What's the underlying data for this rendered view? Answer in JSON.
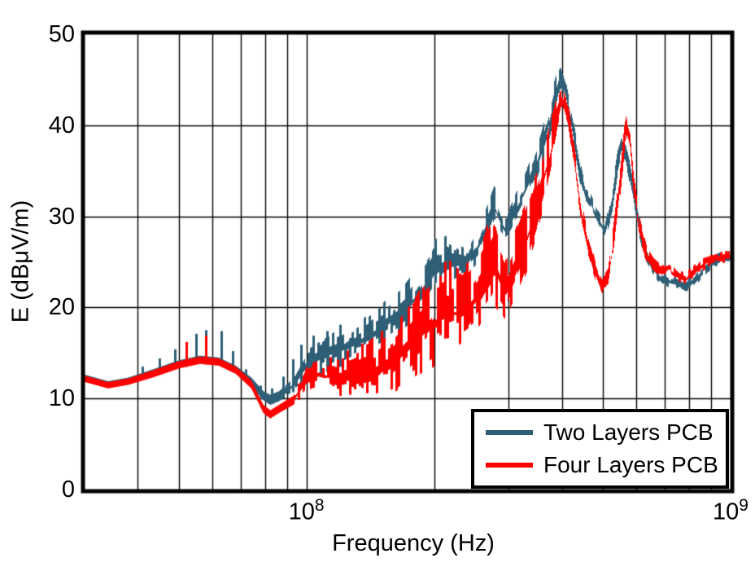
{
  "chart_data": {
    "type": "line",
    "title": "",
    "xlabel": "Frequency (Hz)",
    "ylabel": "E (dBμV/m)",
    "x_scale": "log",
    "xlim": [
      30000000,
      1000000000
    ],
    "ylim": [
      0,
      50
    ],
    "yticks": [
      0,
      10,
      20,
      30,
      40,
      50
    ],
    "xticks": [
      {
        "base": "10",
        "exp": "8",
        "value": 100000000
      },
      {
        "base": "10",
        "exp": "9",
        "value": 1000000000
      }
    ],
    "grid": true,
    "grid_color": "#000000",
    "legend": {
      "position": "lower right",
      "entries": [
        "Two Layers PCB",
        "Four Layers PCB"
      ]
    },
    "envelope_format": [
      "frequency_MHz",
      "envelope_low_dBuV_m",
      "envelope_high_dBuV_m"
    ],
    "spike_format": [
      "frequency_MHz",
      "peak_dBuV_m"
    ],
    "series": [
      {
        "name": "Two Layers PCB",
        "color": "#2E5F76",
        "envelope": [
          [
            30,
            11.9,
            12.6
          ],
          [
            34,
            11.2,
            11.9
          ],
          [
            38,
            11.6,
            12.3
          ],
          [
            44,
            12.5,
            13.3
          ],
          [
            50,
            13.4,
            14.2
          ],
          [
            56,
            13.9,
            14.7
          ],
          [
            62,
            13.7,
            14.5
          ],
          [
            68,
            12.8,
            13.6
          ],
          [
            74,
            11.4,
            12.3
          ],
          [
            79,
            9.8,
            10.8
          ],
          [
            82,
            9.3,
            10.4
          ],
          [
            86,
            9.7,
            10.8
          ],
          [
            93,
            10.7,
            12.2
          ],
          [
            100,
            11.8,
            15.6
          ],
          [
            110,
            12.8,
            16.8
          ],
          [
            122,
            13.6,
            17.8
          ],
          [
            136,
            14.6,
            19.0
          ],
          [
            152,
            15.8,
            20.6
          ],
          [
            170,
            17.2,
            22.6
          ],
          [
            186,
            18.8,
            25.2
          ],
          [
            200,
            21.0,
            27.6
          ],
          [
            214,
            22.5,
            28.4
          ],
          [
            228,
            23.4,
            27.2
          ],
          [
            240,
            23.6,
            26.6
          ],
          [
            255,
            25.0,
            29.0
          ],
          [
            270,
            27.4,
            32.0
          ],
          [
            277,
            29.0,
            33.5
          ],
          [
            285,
            28.0,
            31.6
          ],
          [
            295,
            27.2,
            30.0
          ],
          [
            310,
            29.0,
            32.4
          ],
          [
            330,
            31.2,
            35.2
          ],
          [
            350,
            33.6,
            38.2
          ],
          [
            370,
            37.2,
            42.2
          ],
          [
            385,
            40.8,
            45.2
          ],
          [
            396,
            43.8,
            46.6
          ],
          [
            410,
            41.6,
            44.6
          ],
          [
            425,
            37.6,
            40.6
          ],
          [
            440,
            33.6,
            36.6
          ],
          [
            455,
            31.2,
            33.2
          ],
          [
            466,
            30.6,
            32.6
          ],
          [
            480,
            29.2,
            31.2
          ],
          [
            505,
            27.2,
            29.2
          ],
          [
            525,
            30.0,
            33.2
          ],
          [
            540,
            34.2,
            37.2
          ],
          [
            552,
            36.2,
            38.6
          ],
          [
            565,
            35.4,
            38.0
          ],
          [
            580,
            32.6,
            35.6
          ],
          [
            600,
            28.6,
            31.6
          ],
          [
            620,
            25.6,
            28.0
          ],
          [
            650,
            23.6,
            25.6
          ],
          [
            680,
            22.6,
            24.1
          ],
          [
            710,
            22.1,
            23.6
          ],
          [
            745,
            21.8,
            23.3
          ],
          [
            780,
            21.4,
            22.8
          ],
          [
            820,
            22.3,
            23.8
          ],
          [
            860,
            23.3,
            24.9
          ],
          [
            900,
            24.2,
            25.7
          ],
          [
            950,
            24.6,
            26.1
          ],
          [
            1000,
            24.8,
            26.3
          ]
        ],
        "spikes": [
          [
            41,
            13.5
          ],
          [
            45,
            14.4
          ],
          [
            49,
            15.4
          ],
          [
            55,
            17.1
          ],
          [
            58,
            17.5
          ],
          [
            63,
            17.4
          ],
          [
            67,
            15.2
          ],
          [
            72,
            13.2
          ],
          [
            78,
            11.4
          ],
          [
            83,
            11.1
          ],
          [
            88,
            12.4
          ],
          [
            93,
            14.3
          ],
          [
            97,
            15.9
          ],
          [
            104,
            16.9
          ],
          [
            112,
            17.4
          ],
          [
            120,
            18.1
          ]
        ]
      },
      {
        "name": "Four Layers PCB",
        "color": "#FF0000",
        "envelope": [
          [
            30,
            11.8,
            12.5
          ],
          [
            34,
            11.1,
            11.8
          ],
          [
            38,
            11.5,
            12.2
          ],
          [
            44,
            12.4,
            13.2
          ],
          [
            50,
            13.3,
            14.1
          ],
          [
            56,
            13.8,
            14.6
          ],
          [
            62,
            13.6,
            14.4
          ],
          [
            68,
            12.7,
            13.5
          ],
          [
            74,
            11.1,
            12.0
          ],
          [
            79,
            8.4,
            9.3
          ],
          [
            82,
            7.8,
            8.7
          ],
          [
            86,
            8.4,
            9.3
          ],
          [
            93,
            9.3,
            10.3
          ],
          [
            100,
            10.6,
            13.6
          ],
          [
            108,
            11.0,
            14.4
          ],
          [
            118,
            9.8,
            14.8
          ],
          [
            130,
            9.0,
            15.6
          ],
          [
            145,
            9.2,
            16.8
          ],
          [
            160,
            10.0,
            18.4
          ],
          [
            175,
            11.2,
            20.6
          ],
          [
            190,
            12.4,
            23.2
          ],
          [
            200,
            13.2,
            25.0
          ],
          [
            214,
            14.4,
            25.6
          ],
          [
            228,
            15.2,
            24.4
          ],
          [
            240,
            16.0,
            25.2
          ],
          [
            255,
            17.2,
            27.2
          ],
          [
            270,
            18.8,
            29.6
          ],
          [
            277,
            19.6,
            30.6
          ],
          [
            285,
            19.0,
            28.0
          ],
          [
            295,
            18.0,
            26.6
          ],
          [
            310,
            20.4,
            28.6
          ],
          [
            330,
            23.6,
            32.0
          ],
          [
            350,
            27.6,
            35.6
          ],
          [
            370,
            32.2,
            39.6
          ],
          [
            385,
            36.6,
            42.6
          ],
          [
            400,
            41.2,
            44.3
          ],
          [
            415,
            38.6,
            42.0
          ],
          [
            430,
            33.6,
            37.0
          ],
          [
            445,
            28.6,
            32.0
          ],
          [
            460,
            25.6,
            28.6
          ],
          [
            480,
            22.6,
            25.0
          ],
          [
            497,
            20.8,
            23.2
          ],
          [
            512,
            21.6,
            24.2
          ],
          [
            530,
            26.0,
            29.6
          ],
          [
            550,
            32.2,
            36.2
          ],
          [
            565,
            38.6,
            41.5
          ],
          [
            578,
            36.6,
            40.0
          ],
          [
            590,
            31.6,
            35.0
          ],
          [
            610,
            27.0,
            30.0
          ],
          [
            635,
            24.6,
            26.6
          ],
          [
            660,
            23.8,
            25.4
          ],
          [
            690,
            23.1,
            24.6
          ],
          [
            716,
            23.6,
            25.1
          ],
          [
            745,
            22.7,
            24.2
          ],
          [
            780,
            22.3,
            23.8
          ],
          [
            820,
            23.2,
            24.7
          ],
          [
            860,
            24.0,
            25.5
          ],
          [
            900,
            24.4,
            25.9
          ],
          [
            950,
            24.7,
            26.1
          ],
          [
            1000,
            24.9,
            26.4
          ]
        ],
        "spikes": [
          [
            52,
            16.2
          ],
          [
            58,
            16.9
          ],
          [
            96,
            11.6
          ]
        ]
      }
    ]
  }
}
